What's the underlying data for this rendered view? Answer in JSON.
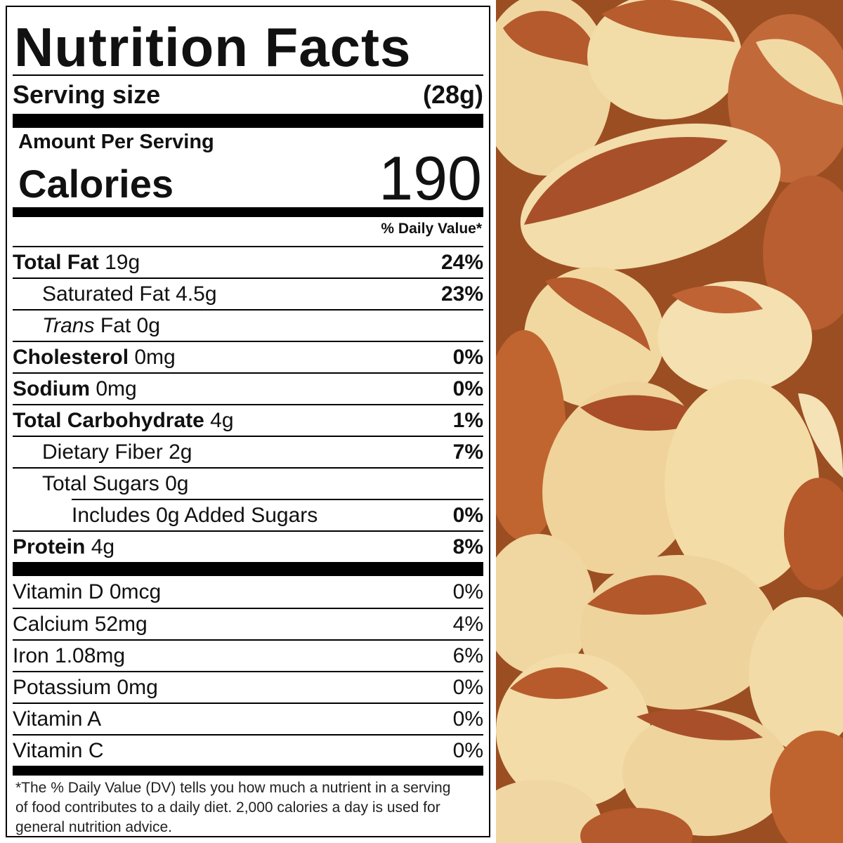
{
  "label": {
    "title": "Nutrition Facts",
    "serving_label": "Serving size",
    "serving_value": "(28g)",
    "amount_per_serving": "Amount Per Serving",
    "calories_label": "Calories",
    "calories_value": "190",
    "dv_header": "% Daily Value*",
    "nutrients": [
      {
        "name": "Total Fat",
        "amount": "19g",
        "dv": "24%"
      },
      {
        "name": "Saturated Fat",
        "amount": "4.5g",
        "dv": "23%"
      },
      {
        "name_italic": "Trans",
        "name": "Fat",
        "amount": "0g",
        "dv": ""
      },
      {
        "name": "Cholesterol",
        "amount": "0mg",
        "dv": "0%"
      },
      {
        "name": "Sodium",
        "amount": "0mg",
        "dv": "0%"
      },
      {
        "name": "Total Carbohydrate",
        "amount": "4g",
        "dv": "1%"
      },
      {
        "name": "Dietary Fiber",
        "amount": "2g",
        "dv": "7%"
      },
      {
        "name": "Total Sugars",
        "amount": "0g",
        "dv": ""
      },
      {
        "name": "Includes 0g Added Sugars",
        "amount": "",
        "dv": "0%"
      },
      {
        "name": "Protein",
        "amount": "4g",
        "dv": "8%"
      }
    ],
    "vitamins": [
      {
        "name": "Vitamin D 0mcg",
        "dv": "0%"
      },
      {
        "name": "Calcium 52mg",
        "dv": "4%"
      },
      {
        "name": "Iron 1.08mg",
        "dv": "6%"
      },
      {
        "name": "Potassium 0mg",
        "dv": "0%"
      },
      {
        "name": "Vitamin A",
        "dv": "0%"
      },
      {
        "name": "Vitamin C",
        "dv": "0%"
      }
    ],
    "footnote": "*The % Daily Value (DV) tells you how much a nutrient in a serving of food contributes to a daily diet. 2,000 calories a day is used for general nutrition advice."
  },
  "colors": {
    "label_ink": "#111111",
    "nut_skin": "#b5592a",
    "nut_flesh": "#f2dca0"
  }
}
